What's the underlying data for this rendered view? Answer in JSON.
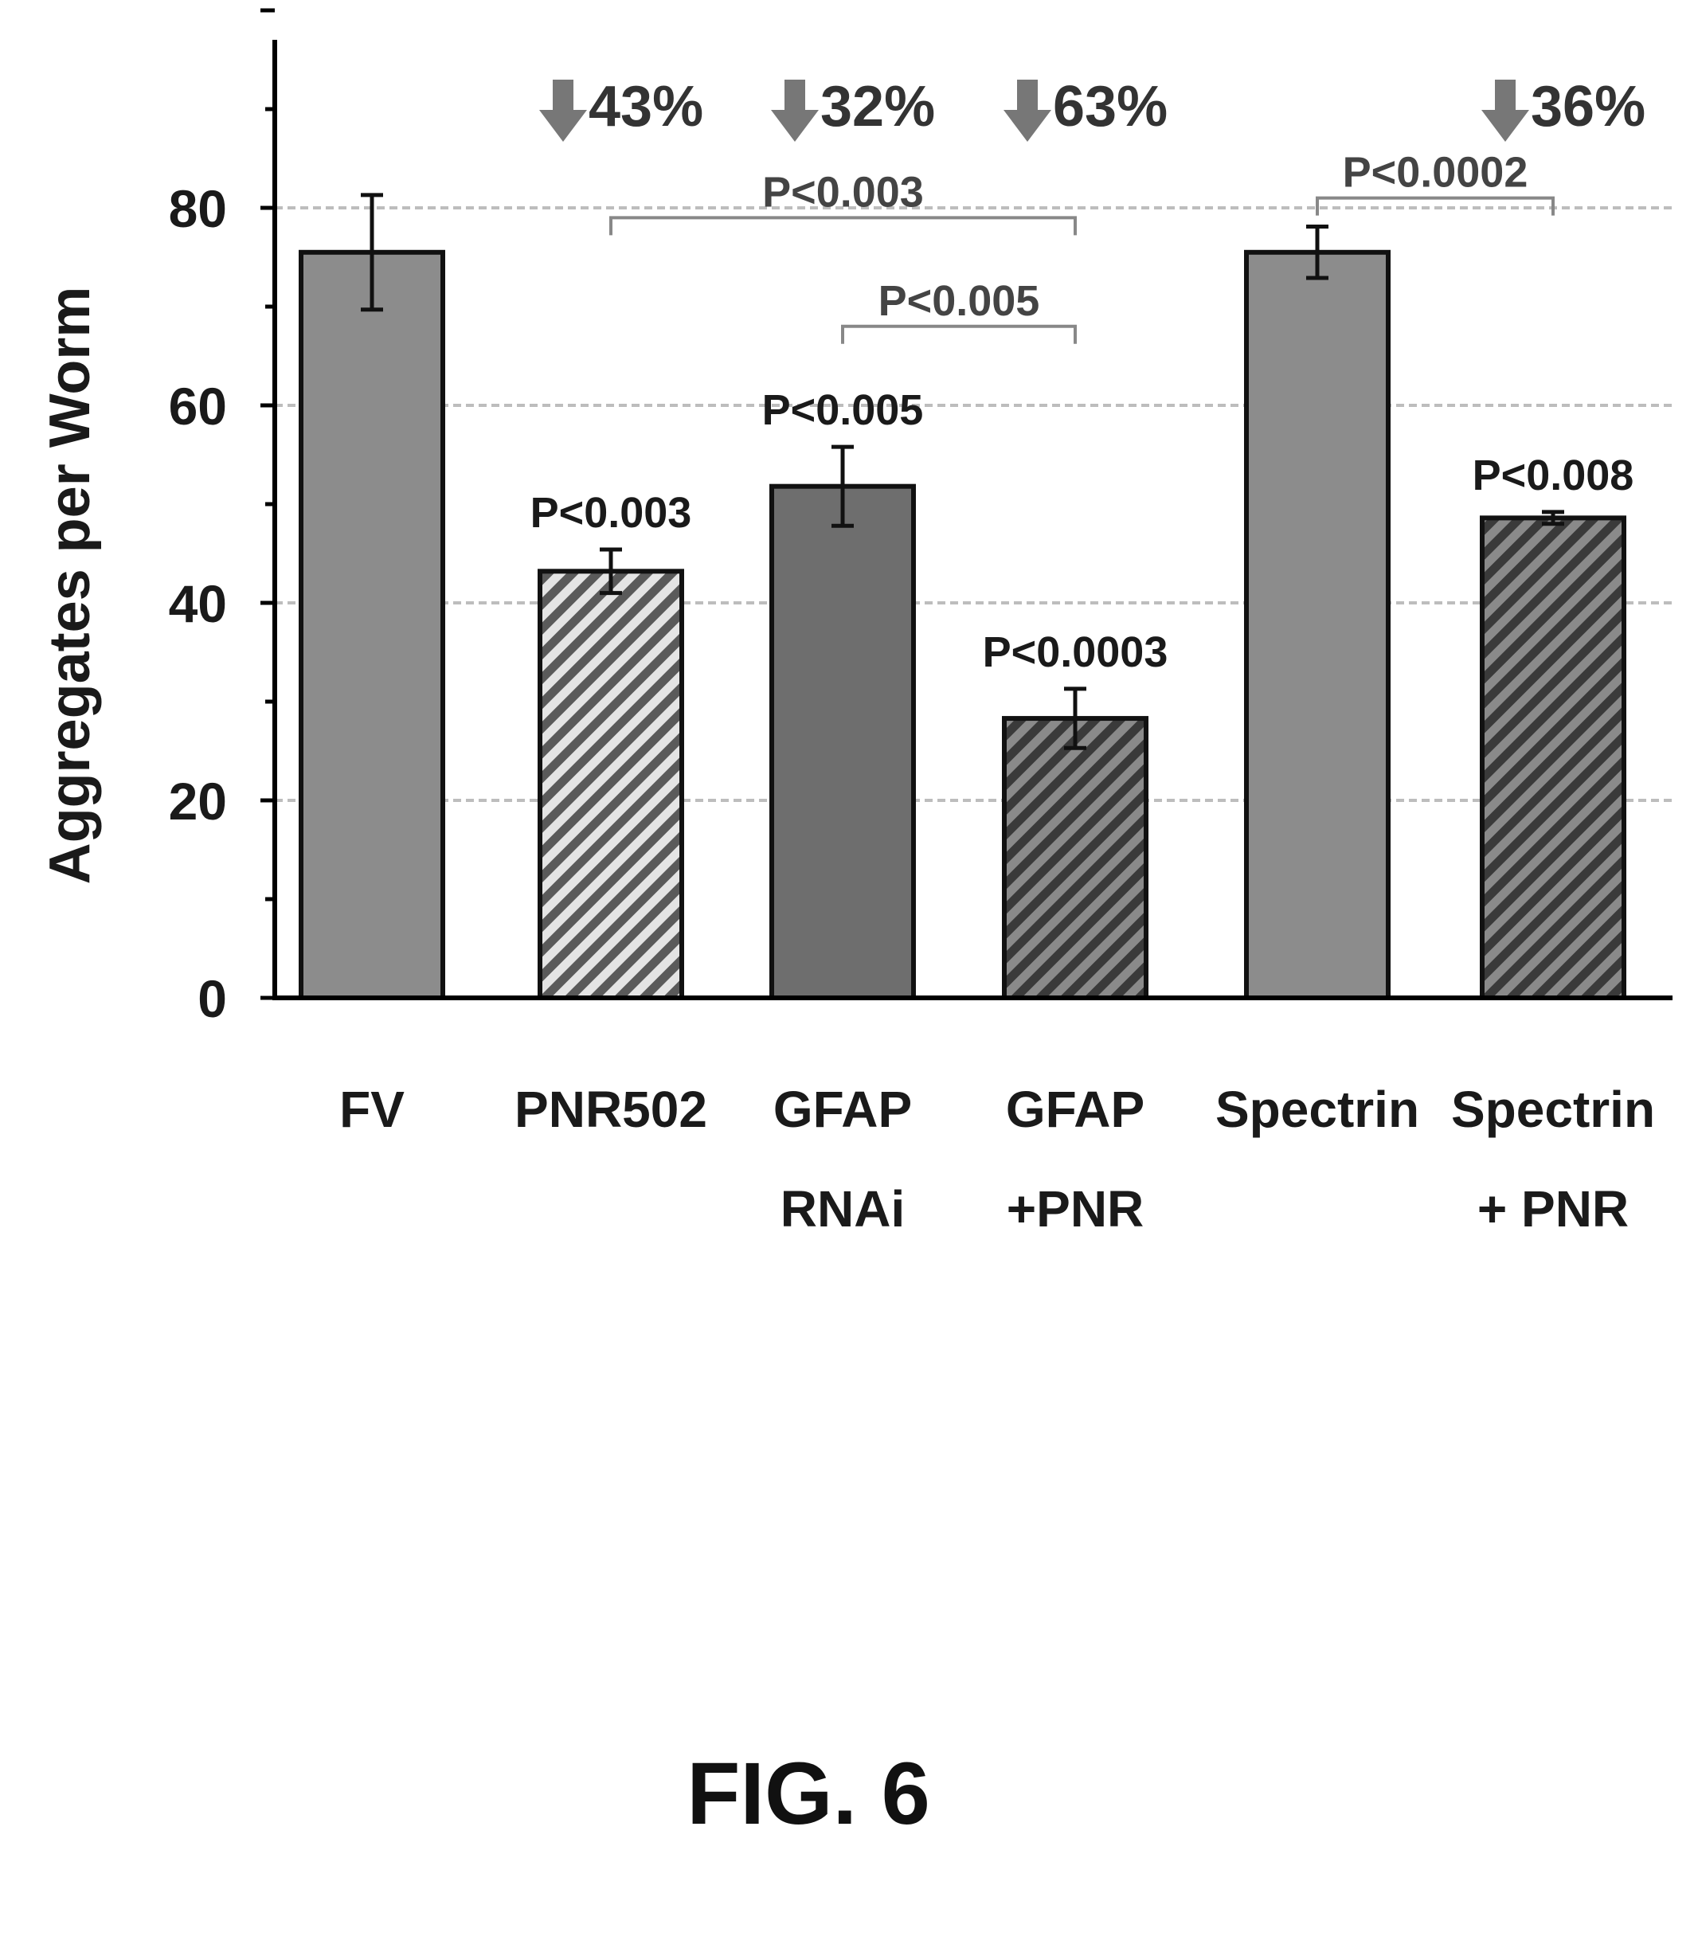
{
  "chart_data": {
    "type": "bar",
    "title": "",
    "xlabel": "",
    "ylabel": "Aggregates per Worm",
    "ylim": [
      0,
      100
    ],
    "yticks": [
      "0",
      "20",
      "40",
      "60",
      "80"
    ],
    "grid": true,
    "categories": [
      {
        "line1": "FV",
        "line2": ""
      },
      {
        "line1": "PNR502",
        "line2": ""
      },
      {
        "line1": "GFAP",
        "line2": "RNAi"
      },
      {
        "line1": "GFAP",
        "line2": "+PNR"
      },
      {
        "line1": "Spectrin",
        "line2": ""
      },
      {
        "line1": "Spectrin",
        "line2": "+ PNR"
      }
    ],
    "values": [
      75.5,
      43.2,
      51.8,
      28.3,
      75.5,
      48.6
    ],
    "errors": [
      5.8,
      2.2,
      4.0,
      3.0,
      2.6,
      0.6
    ],
    "patterns": [
      "solid",
      "hatched",
      "solid",
      "hatched",
      "solid",
      "hatched"
    ],
    "fills": [
      "#8c8c8c",
      "#9a9a9a",
      "#6e6e6e",
      "#777777",
      "#8c8c8c",
      "#8a8a8a"
    ],
    "bar_labels": [
      "",
      "P<0.003",
      "P<0.005",
      "P<0.0003",
      "",
      "P<0.008"
    ],
    "reductions": [
      "",
      "43%",
      "32%",
      "63%",
      "",
      "36%"
    ],
    "brackets": [
      {
        "from": 1,
        "to": 3,
        "y": 79,
        "label": "P<0.003"
      },
      {
        "from": 2,
        "to": 3,
        "y": 68,
        "label": "P<0.005"
      },
      {
        "from": 4,
        "to": 5,
        "y": 81,
        "label": "P<0.0002"
      }
    ]
  },
  "figure_label": "FIG. 6",
  "colors": {
    "axis": "#000000",
    "grid": "#bdbdbd",
    "arrow": "#777777",
    "text": "#1a1a1a"
  }
}
